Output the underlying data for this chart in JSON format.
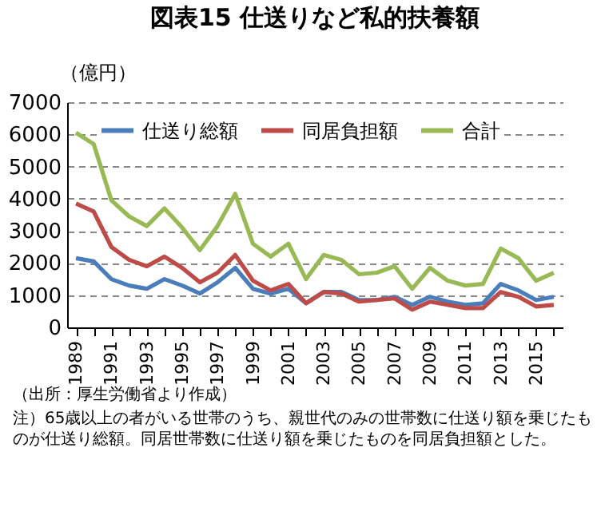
{
  "chart_data": {
    "type": "line",
    "title": "図表15 仕送りなど私的扶養額",
    "ylabel": "（億円）",
    "categories": [
      "1989",
      null,
      "1991",
      null,
      "1993",
      null,
      "1995",
      null,
      "1997",
      null,
      "1999",
      null,
      "2001",
      null,
      "2003",
      null,
      "2005",
      null,
      "2007",
      null,
      "2009",
      null,
      "2011",
      null,
      "2013",
      null,
      "2015",
      null
    ],
    "series": [
      {
        "name": "仕送り総額",
        "color": "#4a7ebb",
        "values": [
          2150,
          2050,
          1500,
          1300,
          1200,
          1500,
          1300,
          1050,
          1400,
          1850,
          1200,
          1050,
          1200,
          750,
          1100,
          1100,
          850,
          850,
          950,
          700,
          950,
          800,
          700,
          750,
          1350,
          1150,
          850,
          950
        ]
      },
      {
        "name": "同居負担額",
        "color": "#be4b48",
        "values": [
          3850,
          3600,
          2500,
          2100,
          1900,
          2200,
          1850,
          1400,
          1700,
          2250,
          1450,
          1150,
          1350,
          750,
          1100,
          1050,
          800,
          850,
          900,
          550,
          800,
          700,
          600,
          600,
          1100,
          950,
          650,
          700
        ]
      },
      {
        "name": "合計",
        "color": "#98b954",
        "values": [
          6050,
          5700,
          3950,
          3450,
          3150,
          3700,
          3100,
          2400,
          3150,
          4150,
          2600,
          2200,
          2600,
          1500,
          2250,
          2100,
          1650,
          1700,
          1900,
          1200,
          1850,
          1450,
          1300,
          1350,
          2450,
          2150,
          1450,
          1700
        ]
      }
    ],
    "ylim": [
      0,
      7000
    ],
    "yticks": [
      0,
      1000,
      2000,
      3000,
      4000,
      5000,
      6000,
      7000
    ],
    "grid": "y",
    "legend": "top",
    "marker": "none",
    "line_style": "solid",
    "annotations": [
      "（出所：厚生労働省より作成）",
      "注）65歳以上の者がいる世帯のうち、親世代のみの世帯数に仕送り額を乗じたものが仕送り総額。同居世帯数に仕送り額を乗じたものを同居負担額とした。"
    ]
  }
}
